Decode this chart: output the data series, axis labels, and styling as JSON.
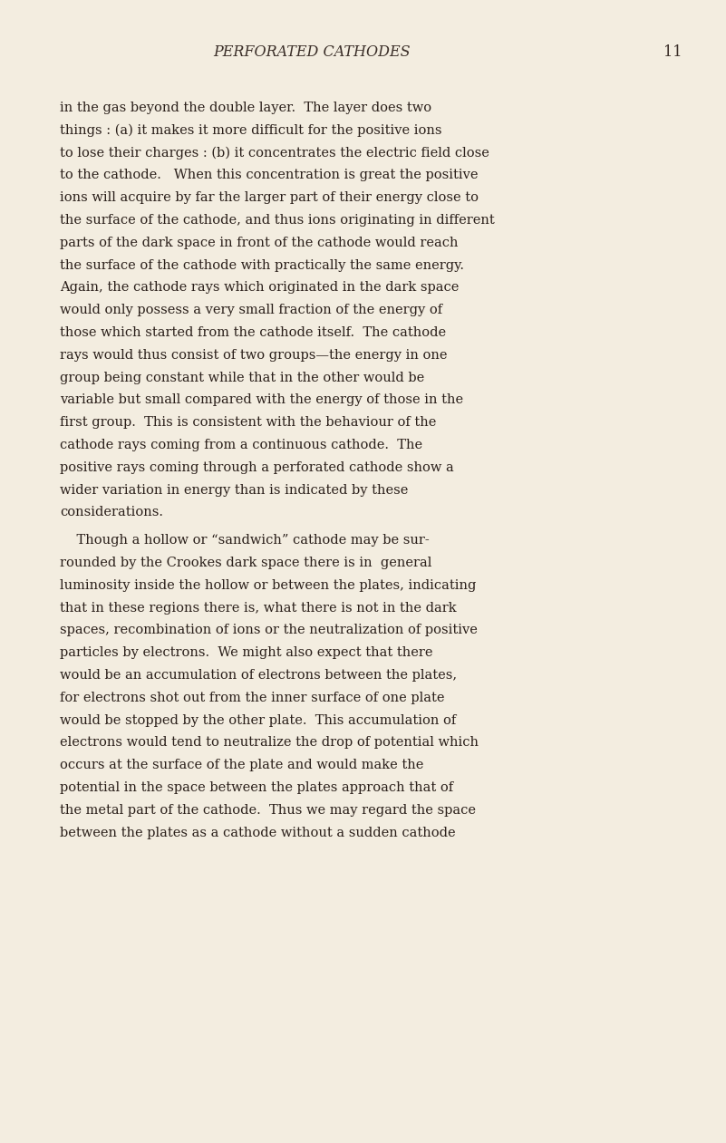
{
  "background_color": "#f3ede0",
  "header_text": "PERFORATED CATHODES",
  "page_number": "11",
  "header_fontsize": 11.5,
  "header_style": "italic",
  "body_fontsize": 10.5,
  "text_color": "#2a1f1a",
  "header_color": "#3a2e28",
  "lines_p1": [
    "in the gas beyond the double layer.  The layer does two",
    "things : (a) it makes it more difficult for the positive ions",
    "to lose their charges : (b) it concentrates the electric field close",
    "to the cathode.   When this concentration is great the positive",
    "ions will acquire by far the larger part of their energy close to",
    "the surface of the cathode, and thus ions originating in different",
    "parts of the dark space in front of the cathode would reach",
    "the surface of the cathode with practically the same energy.",
    "Again, the cathode rays which originated in the dark space",
    "would only possess a very small fraction of the energy of",
    "those which started from the cathode itself.  The cathode",
    "rays would thus consist of two groups—the energy in one",
    "group being constant while that in the other would be",
    "variable but small compared with the energy of those in the",
    "first group.  This is consistent with the behaviour of the",
    "cathode rays coming from a continuous cathode.  The",
    "positive rays coming through a perforated cathode show a",
    "wider variation in energy than is indicated by these",
    "considerations."
  ],
  "lines_p2": [
    "    Though a hollow or “sandwich” cathode may be sur-",
    "rounded by the Crookes dark space there is in  general",
    "luminosity inside the hollow or between the plates, indicating",
    "that in these regions there is, what there is not in the dark",
    "spaces, recombination of ions or the neutralization of positive",
    "particles by electrons.  We might also expect that there",
    "would be an accumulation of electrons between the plates,",
    "for electrons shot out from the inner surface of one plate",
    "would be stopped by the other plate.  This accumulation of",
    "electrons would tend to neutralize the drop of potential which",
    "occurs at the surface of the plate and would make the",
    "potential in the space between the plates approach that of",
    "the metal part of the cathode.  Thus we may regard the space",
    "between the plates as a cathode without a sudden cathode"
  ]
}
